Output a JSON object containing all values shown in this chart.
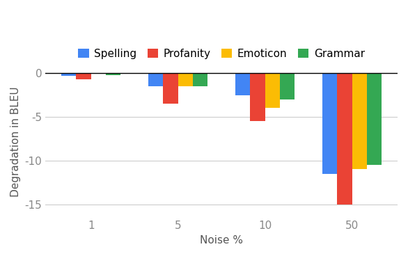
{
  "categories": [
    "1",
    "5",
    "10",
    "50"
  ],
  "series": {
    "Spelling": [
      -0.3,
      -1.5,
      -2.5,
      -11.5
    ],
    "Profanity": [
      -0.7,
      -3.5,
      -5.5,
      -15.0
    ],
    "Emoticon": [
      -0.1,
      -1.5,
      -4.0,
      -11.0
    ],
    "Grammar": [
      -0.2,
      -1.5,
      -3.0,
      -10.5
    ]
  },
  "colors": {
    "Spelling": "#4285F4",
    "Profanity": "#EA4335",
    "Emoticon": "#FBBC04",
    "Grammar": "#34A853"
  },
  "xlabel": "Noise %",
  "ylabel": "Degradation in BLEU",
  "ylim": [
    -16.5,
    0.8
  ],
  "yticks": [
    0,
    -5,
    -10,
    -15
  ],
  "bar_width": 0.17,
  "legend_order": [
    "Spelling",
    "Profanity",
    "Emoticon",
    "Grammar"
  ],
  "background_color": "#ffffff",
  "grid_color": "#cccccc",
  "tick_color": "#888888",
  "axis_label_color": "#555555",
  "tick_fontsize": 11,
  "label_fontsize": 11,
  "legend_fontsize": 11
}
